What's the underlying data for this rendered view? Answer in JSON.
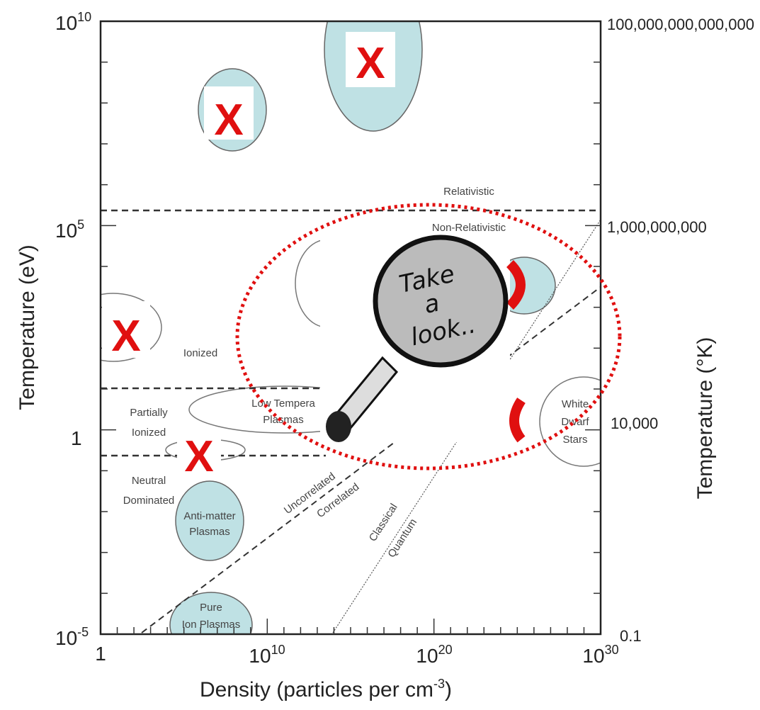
{
  "axes": {
    "left_title": "Temperature (eV)",
    "right_title": "Temperature (°K)",
    "bottom_title": {
      "text": "Density  (particles per cm",
      "exp": "-3",
      "end": ")"
    },
    "left_ticks": [
      {
        "base": "10",
        "exp": "10"
      },
      {
        "base": "10",
        "exp": "5"
      },
      {
        "base": "1"
      },
      {
        "base": "10",
        "exp": "-5"
      }
    ],
    "right_ticks": [
      "100,000,000,000,000",
      "1,000,000,000",
      "10,000",
      "0.1"
    ],
    "bottom_ticks": [
      {
        "base": "1"
      },
      {
        "base": "10",
        "exp": "10"
      },
      {
        "base": "10",
        "exp": "20"
      },
      {
        "base": "10",
        "exp": "30"
      }
    ]
  },
  "regions": {
    "relativistic": "Relativistic",
    "non_relativistic": "Non-Relativistic",
    "ionized": "Ionized",
    "partially_ionized": [
      "Partially",
      "Ionized"
    ],
    "neutral_dominated": [
      "Neutral",
      "Dominated"
    ],
    "anti_matter_plasmas": [
      "Anti-matter",
      "Plasmas"
    ],
    "pure_ion_plasmas": [
      "Pure",
      "Ion Plasmas"
    ],
    "low_temperature_plasmas": [
      "Low Tempera",
      "Plasmas"
    ],
    "white_dwarf_stars": [
      "White",
      "Dwarf",
      "Stars"
    ],
    "uncorrelated": "Uncorrelated",
    "correlated": "Correlated",
    "classical": "Classical",
    "quantum": "Quantum"
  },
  "overlay": {
    "cross_mark": "X",
    "magnifier_text": [
      "Take",
      "a",
      "look.."
    ]
  }
}
